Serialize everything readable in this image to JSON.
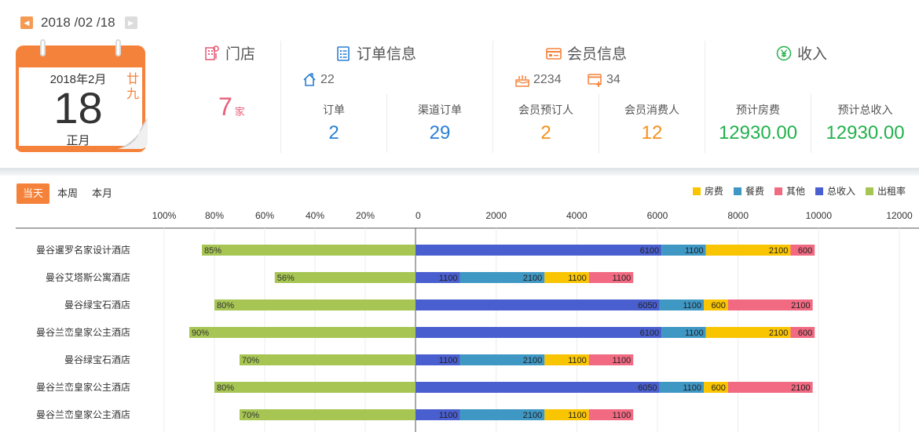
{
  "header": {
    "date": "2018 /02 /18",
    "calendar": {
      "year_month": "2018年2月",
      "day": "18",
      "lunar_day": "廿九",
      "lunar_month": "正月"
    },
    "store": {
      "title": "门店",
      "count": "7",
      "unit": "家"
    },
    "orders": {
      "title": "订单信息",
      "sub_count": "22",
      "order_label": "订单",
      "order_value": "2",
      "channel_label": "渠道订单",
      "channel_value": "29"
    },
    "members": {
      "title": "会员信息",
      "sub_a": "2234",
      "sub_b": "34",
      "booker_label": "会员预订人",
      "booker_value": "2",
      "consumer_label": "会员消费人",
      "consumer_value": "12"
    },
    "income": {
      "title": "收入",
      "room_label": "预计房费",
      "room_value": "12930.00",
      "total_label": "预计总收入",
      "total_value": "12930.00"
    }
  },
  "tabs": [
    {
      "label": "当天",
      "active": true
    },
    {
      "label": "本周",
      "active": false
    },
    {
      "label": "本月",
      "active": false
    }
  ],
  "colors": {
    "room": "#f9c400",
    "food": "#3f97c4",
    "other": "#f16a82",
    "total": "#4a5fcf",
    "occupancy": "#a6c553",
    "accent": "#f5823a"
  },
  "chart_data": {
    "type": "bar",
    "orientation": "horizontal",
    "left_axis": {
      "ticks": [
        "100%",
        "80%",
        "60%",
        "40%",
        "20%",
        "0"
      ],
      "range": [
        100,
        0
      ]
    },
    "right_axis": {
      "ticks": [
        "0",
        "2000",
        "4000",
        "6000",
        "8000",
        "10000",
        "12000"
      ],
      "range": [
        0,
        12000
      ]
    },
    "legend": [
      "房费",
      "餐费",
      "其他",
      "总收入",
      "出租率"
    ],
    "legend_position": "top-right",
    "grid": true,
    "categories": [
      "曼谷暹罗名家设计酒店",
      "曼谷艾塔斯公寓酒店",
      "曼谷绿宝石酒店",
      "曼谷兰峦皇家公主酒店",
      "曼谷绿宝石酒店",
      "曼谷兰峦皇家公主酒店",
      "曼谷兰峦皇家公主酒店"
    ],
    "occupancy": {
      "name": "出租率",
      "values": [
        85,
        56,
        80,
        90,
        70,
        80,
        70
      ],
      "labels": [
        "85%",
        "56%",
        "80%",
        "90%",
        "70%",
        "80%",
        "70%"
      ]
    },
    "series": [
      {
        "name": "总收入",
        "values": [
          6100,
          1100,
          6050,
          6100,
          1100,
          6050,
          1100
        ]
      },
      {
        "name": "餐费",
        "values": [
          1100,
          2100,
          1100,
          1100,
          2100,
          1100,
          2100
        ]
      },
      {
        "name": "房费",
        "values": [
          2100,
          1100,
          600,
          2100,
          1100,
          600,
          1100
        ]
      },
      {
        "name": "其他",
        "values": [
          600,
          1100,
          2100,
          600,
          1100,
          2100,
          1100
        ]
      }
    ],
    "segment_labels": [
      [
        "6100",
        "1100",
        "2100",
        "600"
      ],
      [
        "1100",
        "2100",
        "1100",
        "1100"
      ],
      [
        "6050",
        "1100",
        "600",
        "2100"
      ],
      [
        "6100",
        "1100",
        "2100",
        "600"
      ],
      [
        "1100",
        "2100",
        "1100",
        "1100"
      ],
      [
        "6050",
        "1100",
        "600",
        "2100"
      ],
      [
        "1100",
        "2100",
        "1100",
        "1100"
      ]
    ]
  }
}
